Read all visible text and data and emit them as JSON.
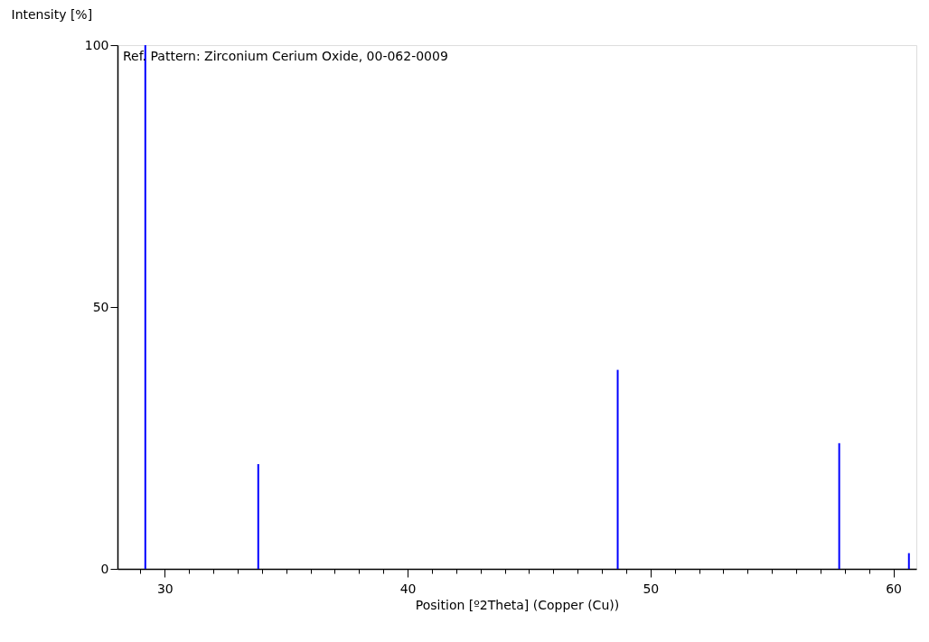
{
  "chart_data": {
    "type": "bar",
    "xlabel": "Position [º2Theta] (Copper (Cu))",
    "ylabel": "Intensity [%]",
    "annotations": [
      "Ref. Pattern: Zirconium Cerium Oxide, 00-062-0009"
    ],
    "x": [
      29.2,
      33.85,
      48.65,
      57.77,
      60.64
    ],
    "series": [
      {
        "color": "#0000ff",
        "values": [
          100,
          20,
          38,
          24,
          3
        ]
      }
    ],
    "xlim": [
      28.24,
      60.76
    ],
    "xticks": [
      {
        "value": 29,
        "label": null
      },
      30,
      {
        "value": 31,
        "label": null
      },
      {
        "value": 32,
        "label": null
      },
      {
        "value": 33,
        "label": null
      },
      {
        "value": 34,
        "label": null
      },
      {
        "value": 35,
        "label": null
      },
      {
        "value": 36,
        "label": null
      },
      {
        "value": 37,
        "label": null
      },
      {
        "value": 38,
        "label": null
      },
      {
        "value": 39,
        "label": null
      },
      40,
      {
        "value": 41,
        "label": null
      },
      {
        "value": 42,
        "label": null
      },
      {
        "value": 43,
        "label": null
      },
      {
        "value": 44,
        "label": null
      },
      {
        "value": 45,
        "label": null
      },
      {
        "value": 46,
        "label": null
      },
      {
        "value": 47,
        "label": null
      },
      {
        "value": 48,
        "label": null
      },
      {
        "value": 49,
        "label": null
      },
      50,
      {
        "value": 51,
        "label": null
      },
      {
        "value": 52,
        "label": null
      },
      {
        "value": 53,
        "label": null
      },
      {
        "value": 54,
        "label": null
      },
      {
        "value": 55,
        "label": null
      },
      {
        "value": 56,
        "label": null
      },
      {
        "value": 57,
        "label": null
      },
      {
        "value": 58,
        "label": null
      },
      {
        "value": 59,
        "label": null
      },
      60
    ],
    "ylim": [
      0,
      100
    ],
    "yticks": [
      0,
      50,
      100
    ],
    "grid": false
  }
}
